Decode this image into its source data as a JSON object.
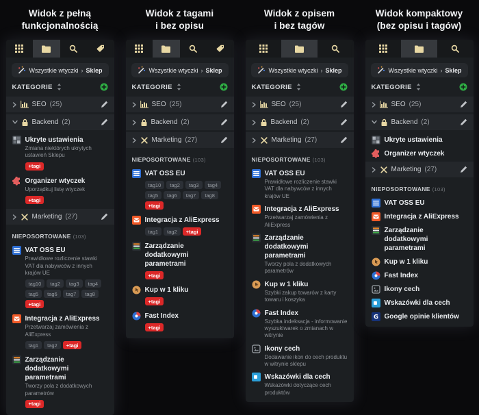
{
  "colors": {
    "icon_accent": "#e8d8a4",
    "add_green": "#2fae44",
    "more_tag_red": "#dc2828",
    "panel_bg": "#1c1f22",
    "category_card_bg": "#24272b"
  },
  "columns": [
    {
      "title_line1": "Widok z pełną",
      "title_line2": "funkcjonalnością",
      "toolbar": {
        "tabs": [
          {
            "icon": "grid-icon",
            "active": false
          },
          {
            "icon": "folder-icon",
            "active": true
          },
          {
            "icon": "search-icon",
            "active": false
          },
          {
            "icon": "tag-icon",
            "active": false
          }
        ]
      },
      "breadcrumb": {
        "icon": "wand-icon",
        "path": "Wszystkie wtyczki",
        "separator": "›",
        "current": "Sklep"
      },
      "section": {
        "label": "KATEGORIE"
      },
      "categories": [
        {
          "icon": "chart-icon",
          "name": "SEO",
          "count": "(25)",
          "expanded": false,
          "children": []
        },
        {
          "icon": "lock-icon",
          "name": "Backend",
          "count": "(2)",
          "expanded": true,
          "children": [
            {
              "icon": "hidden-settings-icon",
              "title": "Ukryte ustawienia",
              "desc": "Zmiana niektórych ukrytych ustawień Sklepu",
              "more_tag": "+tagi"
            },
            {
              "icon": "puzzle-icon",
              "title": "Organizer wtyczek",
              "desc": "Uporządkuj listę wtyczek",
              "more_tag": "+tagi"
            }
          ]
        },
        {
          "icon": "tools-icon",
          "name": "Marketing",
          "count": "(27)",
          "expanded": false,
          "children": []
        }
      ],
      "unsorted": {
        "label": "NIEPOSORTOWANE",
        "count": "(103)",
        "items": [
          {
            "icon": "eu-icon",
            "title": "VAT OSS EU",
            "desc": "Prawidłowe rozliczenie stawki VAT dla nabywców z innych krajów UE",
            "tags": [
              "tag10",
              "tag2",
              "tag3",
              "tag4",
              "tag5",
              "tag6",
              "tag7",
              "tag8"
            ],
            "more_tag": "+tagi"
          },
          {
            "icon": "aliexpress-icon",
            "title": "Integracja z AliExpress",
            "desc": "Przetwarzaj zamówienia z AliExpress",
            "tags": [
              "tag1",
              "tag2"
            ],
            "more_tag": "+tagi"
          },
          {
            "icon": "params-icon",
            "title": "Zarządzanie dodatkowymi parametrami",
            "desc": "Tworzy pola z dodatkowych parametrów",
            "more_tag": "+tagi"
          }
        ]
      }
    },
    {
      "title_line1": "Widok z tagami",
      "title_line2": "i bez opisu",
      "toolbar": {
        "tabs": [
          {
            "icon": "grid-icon",
            "active": false
          },
          {
            "icon": "folder-icon",
            "active": true
          },
          {
            "icon": "search-icon",
            "active": false
          },
          {
            "icon": "tag-icon",
            "active": false
          }
        ]
      },
      "breadcrumb": {
        "icon": "wand-icon",
        "path": "Wszystkie wtyczki",
        "separator": "›",
        "current": "Sklep"
      },
      "section": {
        "label": "KATEGORIE"
      },
      "categories": [
        {
          "icon": "chart-icon",
          "name": "SEO",
          "count": "(25)",
          "expanded": false,
          "children": []
        },
        {
          "icon": "lock-icon",
          "name": "Backend",
          "count": "(2)",
          "expanded": false,
          "children": []
        },
        {
          "icon": "tools-icon",
          "name": "Marketing",
          "count": "(27)",
          "expanded": false,
          "children": []
        }
      ],
      "unsorted": {
        "label": "NIEPOSORTOWANE",
        "count": "(103)",
        "items": [
          {
            "icon": "eu-icon",
            "title": "VAT OSS EU",
            "tags": [
              "tag10",
              "tag2",
              "tag3",
              "tag4",
              "tag5",
              "tag6",
              "tag7",
              "tag8"
            ],
            "more_tag": "+tagi"
          },
          {
            "icon": "aliexpress-icon",
            "title": "Integracja z AliExpress",
            "tags": [
              "tag1",
              "tag2"
            ],
            "more_tag": "+tagi"
          },
          {
            "icon": "params-icon",
            "title": "Zarządzanie dodatkowymi parametrami",
            "more_tag": "+tagi"
          },
          {
            "icon": "one-click-icon",
            "title": "Kup w 1 kliku",
            "more_tag": "+tagi"
          },
          {
            "icon": "fast-index-icon",
            "title": "Fast Index",
            "more_tag": "+tagi"
          }
        ]
      }
    },
    {
      "title_line1": "Widok z opisem",
      "title_line2": "i bez tagów",
      "toolbar": {
        "tabs": [
          {
            "icon": "grid-icon",
            "active": false
          },
          {
            "icon": "folder-icon",
            "active": true
          },
          {
            "icon": "search-icon",
            "active": false
          }
        ]
      },
      "breadcrumb": {
        "icon": "wand-icon",
        "path": "Wszystkie wtyczki",
        "separator": "›",
        "current": "Sklep"
      },
      "section": {
        "label": "KATEGORIE"
      },
      "categories": [
        {
          "icon": "chart-icon",
          "name": "SEO",
          "count": "(25)",
          "expanded": false,
          "children": []
        },
        {
          "icon": "lock-icon",
          "name": "Backend",
          "count": "(2)",
          "expanded": false,
          "children": []
        },
        {
          "icon": "tools-icon",
          "name": "Marketing",
          "count": "(27)",
          "expanded": false,
          "children": []
        }
      ],
      "unsorted": {
        "label": "NIEPOSORTOWANE",
        "count": "(103)",
        "items": [
          {
            "icon": "eu-icon",
            "title": "VAT OSS EU",
            "desc": "Prawidłowe rozliczenie stawki VAT dla nabywców z innych krajów UE"
          },
          {
            "icon": "aliexpress-icon",
            "title": "Integracja z AliExpress",
            "desc": "Przetwarzaj zamówienia z AliExpress"
          },
          {
            "icon": "params-icon",
            "title": "Zarządzanie dodatkowymi parametrami",
            "desc": "Tworzy pola z dodatkowych parametrów"
          },
          {
            "icon": "one-click-icon",
            "title": "Kup w 1 kliku",
            "desc": "Szybki zakup towarów z karty towaru i koszyka"
          },
          {
            "icon": "fast-index-icon",
            "title": "Fast Index",
            "desc": "Szybka indeksacja - informowanie wyszukiwarek o zmianach w witrynie"
          },
          {
            "icon": "feature-icons-icon",
            "title": "Ikony cech",
            "desc": "Dodawanie ikon do cech produktu w witrynie sklepu"
          },
          {
            "icon": "hints-icon",
            "title": "Wskazówki dla cech",
            "desc": "Wskazówki dotyczące cech produktów"
          }
        ]
      }
    },
    {
      "title_line1": "Widok kompaktowy",
      "title_line2": "(bez opisu i tagów)",
      "toolbar": {
        "tabs": [
          {
            "icon": "grid-icon",
            "active": false
          },
          {
            "icon": "folder-icon",
            "active": true
          },
          {
            "icon": "search-icon",
            "active": false
          }
        ]
      },
      "breadcrumb": {
        "icon": "wand-icon",
        "path": "Wszystkie wtyczki",
        "separator": "›",
        "current": "Sklep"
      },
      "section": {
        "label": "KATEGORIE"
      },
      "categories": [
        {
          "icon": "chart-icon",
          "name": "SEO",
          "count": "(25)",
          "expanded": false,
          "children": []
        },
        {
          "icon": "lock-icon",
          "name": "Backend",
          "count": "(2)",
          "expanded": true,
          "children": [
            {
              "icon": "hidden-settings-icon",
              "title": "Ukryte ustawienia"
            },
            {
              "icon": "puzzle-icon",
              "title": "Organizer wtyczek"
            }
          ]
        },
        {
          "icon": "tools-icon",
          "name": "Marketing",
          "count": "(27)",
          "expanded": false,
          "children": []
        }
      ],
      "unsorted": {
        "label": "NIEPOSORTOWANE",
        "count": "(103)",
        "items": [
          {
            "icon": "eu-icon",
            "title": "VAT OSS EU"
          },
          {
            "icon": "aliexpress-icon",
            "title": "Integracja z AliExpress"
          },
          {
            "icon": "params-icon",
            "title": "Zarządzanie dodatkowymi parametrami"
          },
          {
            "icon": "one-click-icon",
            "title": "Kup w 1 kliku"
          },
          {
            "icon": "fast-index-icon",
            "title": "Fast Index"
          },
          {
            "icon": "feature-icons-icon",
            "title": "Ikony cech"
          },
          {
            "icon": "hints-icon",
            "title": "Wskazówki dla cech"
          },
          {
            "icon": "google-reviews-icon",
            "title": "Google opinie klientów"
          }
        ]
      }
    }
  ]
}
